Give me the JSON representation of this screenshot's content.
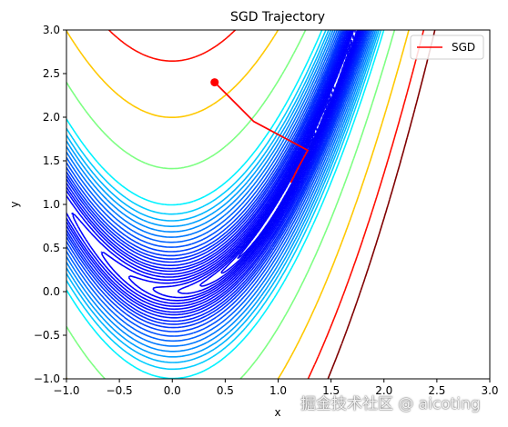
{
  "chart_data": {
    "type": "contour",
    "title": "SGD Trajectory",
    "xlabel": "x",
    "ylabel": "y",
    "xlim": [
      -1.0,
      3.0
    ],
    "ylim": [
      -1.0,
      3.0
    ],
    "xticks": [
      -1.0,
      -0.5,
      0.0,
      0.5,
      1.0,
      1.5,
      2.0,
      2.5,
      3.0
    ],
    "yticks": [
      -1.0,
      -0.5,
      0.0,
      0.5,
      1.0,
      1.5,
      2.0,
      2.5,
      3.0
    ],
    "xtick_labels": [
      "−1.0",
      "−0.5",
      "0.0",
      "0.5",
      "1.0",
      "1.5",
      "2.0",
      "2.5",
      "3.0"
    ],
    "ytick_labels": [
      "−1.0",
      "−0.5",
      "0.0",
      "0.5",
      "1.0",
      "1.5",
      "2.0",
      "2.5",
      "3.0"
    ],
    "function": "rosenbrock",
    "contour_levels": [
      0.15,
      0.3,
      0.55,
      0.9,
      1.4,
      2,
      2.8,
      3.8,
      5,
      6.5,
      8,
      10,
      12.5,
      15,
      18,
      22,
      27,
      33,
      40,
      48,
      57,
      67,
      80,
      100,
      200,
      400,
      700,
      1000
    ],
    "colormap": "jet",
    "grid": false,
    "legend": {
      "position": "top-right",
      "entries": [
        {
          "label": "SGD",
          "color": "#ff0000"
        }
      ]
    },
    "series": [
      {
        "name": "SGD",
        "color": "#ff0000",
        "x": [
          0.4,
          0.77,
          1.28,
          1.18,
          1.12
        ],
        "y": [
          2.4,
          1.95,
          1.62,
          1.4,
          1.25
        ],
        "start_marker": {
          "x": 0.4,
          "y": 2.4
        }
      }
    ]
  },
  "watermark": "掘金技术社区 @ aicoting"
}
